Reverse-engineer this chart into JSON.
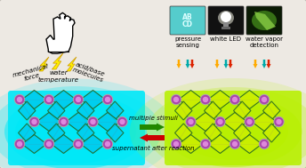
{
  "bg_color": "#ede9e3",
  "border_color": "#b8b4ac",
  "cyan_bg": "#00e8f8",
  "green_bg": "#b8f000",
  "lightning_color": "#ffee00",
  "green_arrow_color": "#228800",
  "red_arrow_color": "#cc0000",
  "teal_arrow_color": "#00aaaa",
  "orange_arrow_color": "#ffaa00",
  "red_small_arrow": "#dd2200",
  "mof_hole_cyan": "#00ccee",
  "mof_hole_green": "#ccee00",
  "node_outer": "#aa44aa",
  "node_inner": "#dd88dd",
  "frame_green": "#226622",
  "frame_gray": "#888888",
  "sq1_color": "#55cccc",
  "sq2_color": "#111111",
  "sq3_color": "#1a2a0a",
  "top_labels": [
    "pressure\nsensing",
    "white LED",
    "water vapor\ndetection"
  ],
  "arrow_label1": "multiple stimuli",
  "arrow_label2": "supernatant after reaction",
  "stim_labels": [
    "mechanical\nforce",
    "water\ntemperature",
    "acid/base\nmolecules"
  ]
}
